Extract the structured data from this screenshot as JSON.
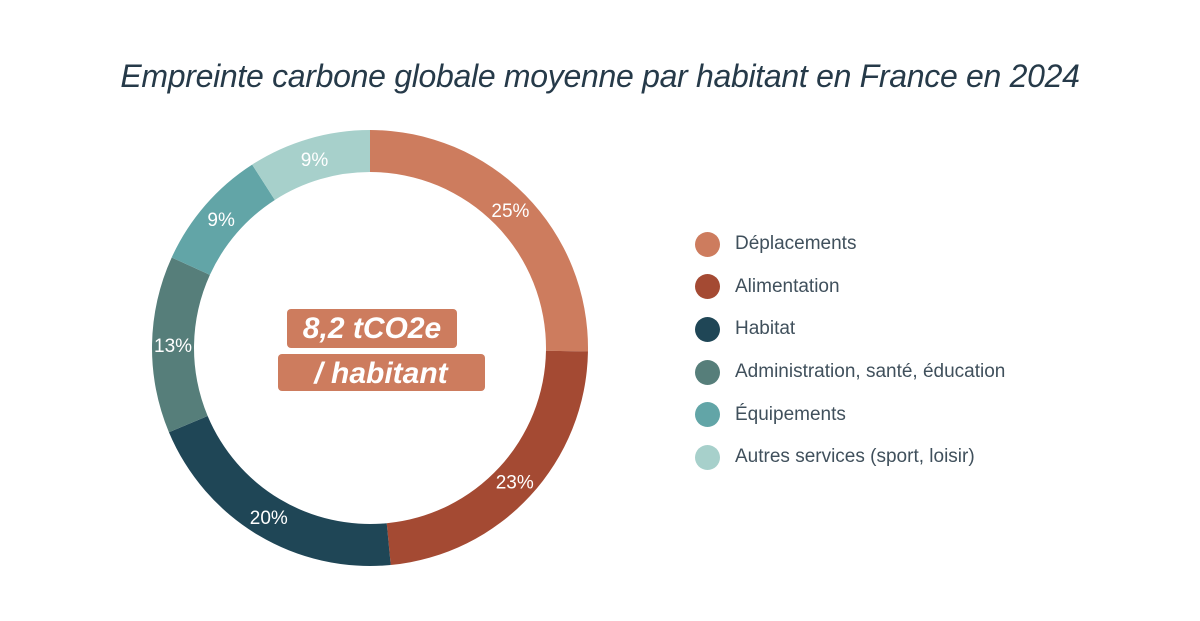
{
  "chart_data": {
    "type": "pie",
    "title": "Empreinte carbone globale moyenne par habitant en France en 2024",
    "center_label": [
      "8,2 tCO2e",
      "/ habitant"
    ],
    "categories": [
      "Déplacements",
      "Alimentation",
      "Habitat",
      "Administration, santé, éducation",
      "Équipements",
      "Autres services (sport, loisir)"
    ],
    "values": [
      25,
      23,
      20,
      13,
      9,
      9
    ],
    "value_labels": [
      "25%",
      "23%",
      "20%",
      "13%",
      "9%",
      "9%"
    ],
    "colors": [
      "#cd7c5e",
      "#a44a33",
      "#1f4656",
      "#567e7a",
      "#62a5a7",
      "#a7d0cb"
    ],
    "legend_position": "right",
    "donut": true
  }
}
